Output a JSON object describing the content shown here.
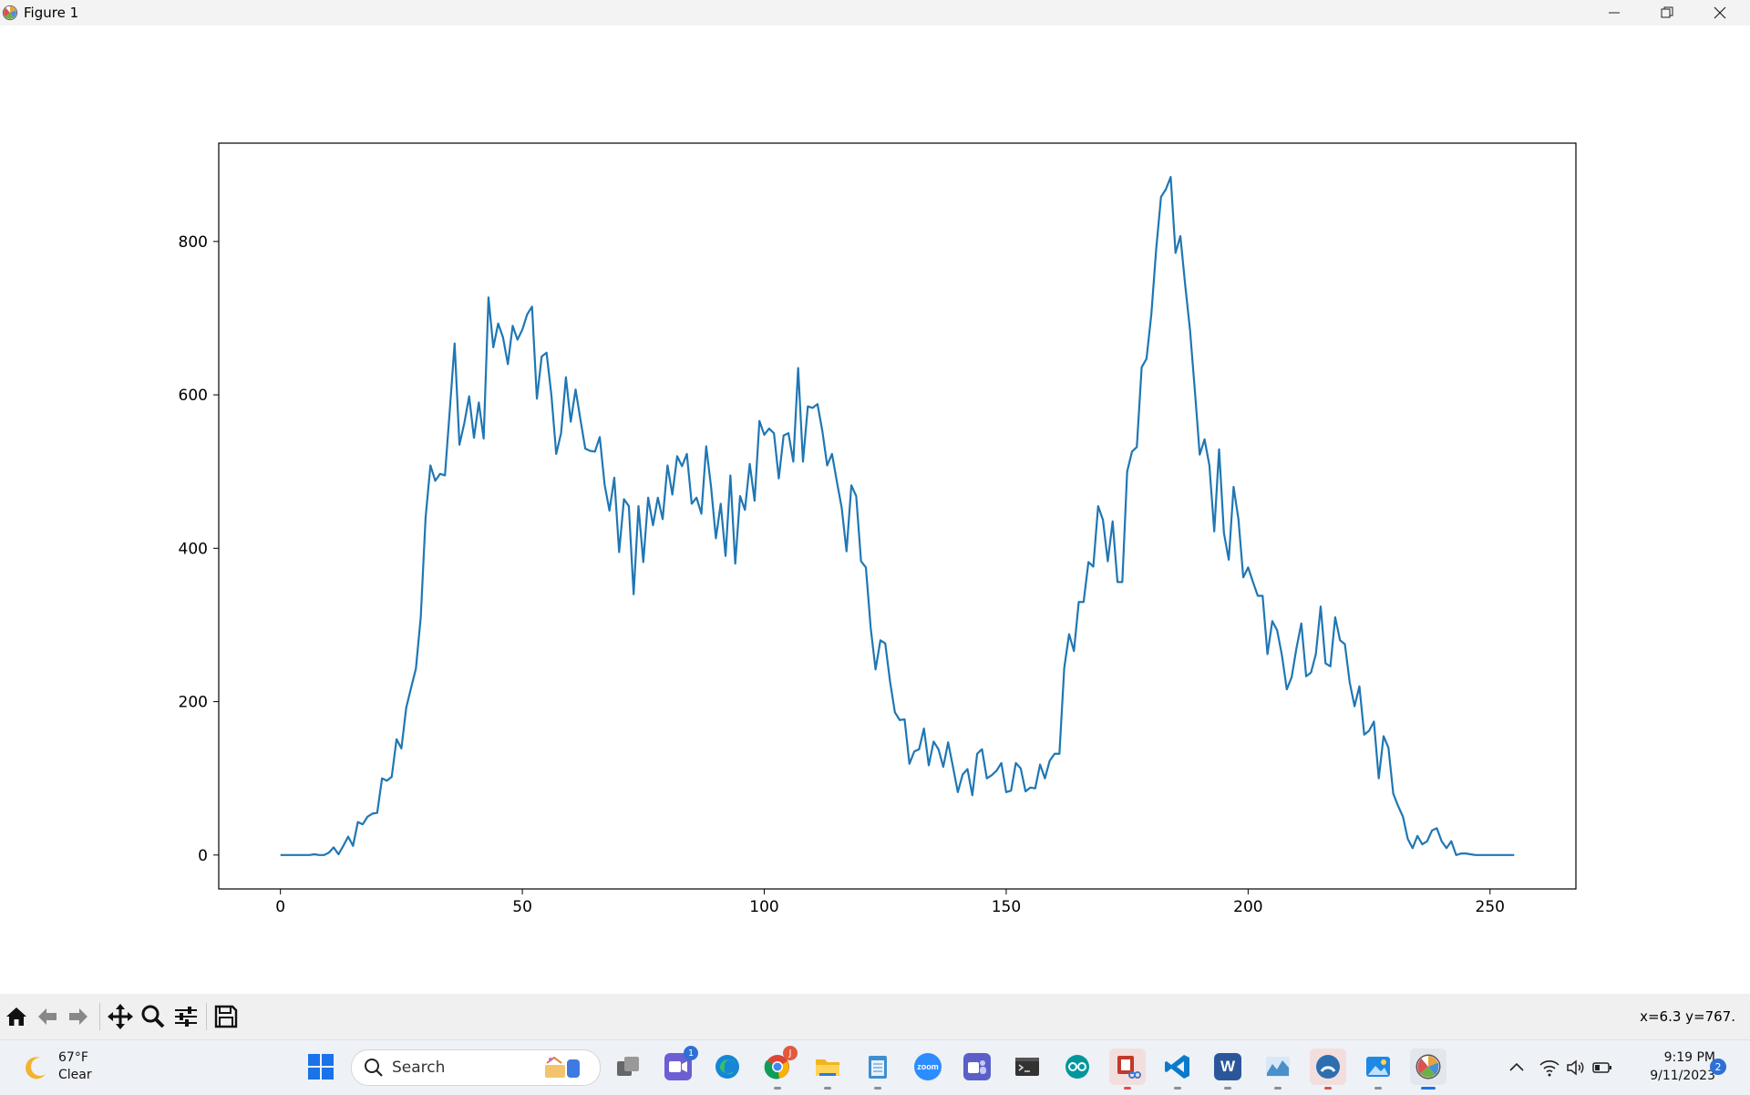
{
  "window": {
    "title": "Figure 1"
  },
  "chart_data": {
    "type": "line",
    "title": "",
    "xlabel": "",
    "ylabel": "",
    "xlim": [
      -12.75,
      267.75
    ],
    "ylim": [
      -44.2,
      928.2
    ],
    "x_ticks": [
      0,
      50,
      100,
      150,
      200,
      250
    ],
    "y_ticks": [
      0,
      200,
      400,
      600,
      800
    ],
    "grid": false,
    "series": [
      {
        "color": "#1f77b4",
        "y": [
          0,
          0,
          0,
          0,
          0,
          0,
          0,
          1,
          0,
          0,
          3,
          10,
          1,
          12,
          24,
          12,
          43,
          40,
          50,
          54,
          55,
          100,
          97,
          102,
          151,
          139,
          192,
          218,
          243,
          310,
          440,
          508,
          488,
          497,
          495,
          580,
          667,
          535,
          563,
          598,
          544,
          590,
          543,
          727,
          662,
          693,
          675,
          640,
          690,
          672,
          685,
          705,
          715,
          595,
          650,
          655,
          600,
          523,
          550,
          623,
          565,
          607,
          568,
          530,
          527,
          526,
          545,
          483,
          449,
          492,
          395,
          464,
          455,
          340,
          455,
          382,
          466,
          430,
          466,
          438,
          508,
          470,
          520,
          507,
          523,
          458,
          466,
          445,
          533,
          480,
          413,
          458,
          390,
          495,
          380,
          468,
          450,
          510,
          462,
          566,
          548,
          556,
          550,
          491,
          547,
          550,
          513,
          635,
          513,
          585,
          583,
          588,
          553,
          508,
          523,
          487,
          453,
          396,
          482,
          468,
          383,
          375,
          296,
          242,
          280,
          276,
          226,
          186,
          176,
          177,
          119,
          135,
          138,
          165,
          117,
          148,
          138,
          115,
          147,
          115,
          82,
          105,
          112,
          78,
          132,
          138,
          100,
          104,
          110,
          120,
          82,
          84,
          120,
          113,
          83,
          88,
          87,
          118,
          100,
          123,
          132,
          132,
          244,
          288,
          266,
          330,
          330,
          382,
          376,
          455,
          437,
          383,
          435,
          356,
          356,
          500,
          526,
          532,
          636,
          647,
          705,
          790,
          858,
          868,
          884,
          785,
          807,
          743,
          684,
          605,
          522,
          542,
          508,
          422,
          529,
          420,
          385,
          480,
          438,
          362,
          375,
          356,
          338,
          338,
          262,
          305,
          293,
          260,
          216,
          232,
          270,
          302,
          233,
          238,
          262,
          324,
          250,
          246,
          310,
          280,
          275,
          225,
          194,
          220,
          157,
          162,
          174,
          100,
          155,
          140,
          80,
          64,
          50,
          21,
          9,
          25,
          14,
          18,
          32,
          35,
          18,
          9,
          18,
          0,
          2,
          2,
          1,
          0,
          0,
          0,
          0,
          0,
          0,
          0,
          0,
          0
        ]
      }
    ]
  },
  "toolbar": {
    "home": "home-icon",
    "back": "back-arrow-icon",
    "forward": "forward-arrow-icon",
    "pan": "pan-icon",
    "zoom": "zoom-icon",
    "configure": "configure-subplots-icon",
    "save": "save-icon",
    "coordinates": "x=6.3 y=767."
  },
  "taskbar": {
    "weather": {
      "temp": "67°F",
      "condition": "Clear"
    },
    "search_placeholder": "Search",
    "apps": [
      {
        "name": "start",
        "color": "#1a73e8"
      },
      {
        "name": "task-view",
        "color": "#555"
      },
      {
        "name": "meet",
        "color": "#6b5fd3",
        "badge": "1"
      },
      {
        "name": "edge",
        "color": "#1587d6"
      },
      {
        "name": "chrome",
        "color": "#34a853",
        "badge": "J"
      },
      {
        "name": "file-explorer",
        "color": "#f2b61d"
      },
      {
        "name": "notepad",
        "color": "#3e8ed0"
      },
      {
        "name": "zoom",
        "color": "#2d8cff",
        "label": "zoom"
      },
      {
        "name": "teams",
        "color": "#5b5fc7"
      },
      {
        "name": "terminal",
        "color": "#333"
      },
      {
        "name": "arduino",
        "color": "#00979c"
      },
      {
        "name": "snipping-tool",
        "color": "#c0392b"
      },
      {
        "name": "vscode",
        "color": "#0a7acc"
      },
      {
        "name": "word",
        "color": "#2b579a",
        "label": "W"
      },
      {
        "name": "resource-monitor",
        "color": "#4a90c8"
      },
      {
        "name": "app-circle",
        "color": "#2c6fb0"
      },
      {
        "name": "photos",
        "color": "#1e88e5"
      },
      {
        "name": "matplotlib",
        "color": "#f5a623"
      }
    ],
    "clock": {
      "time": "9:19 PM",
      "date": "9/11/2023"
    },
    "notifications": "2"
  }
}
